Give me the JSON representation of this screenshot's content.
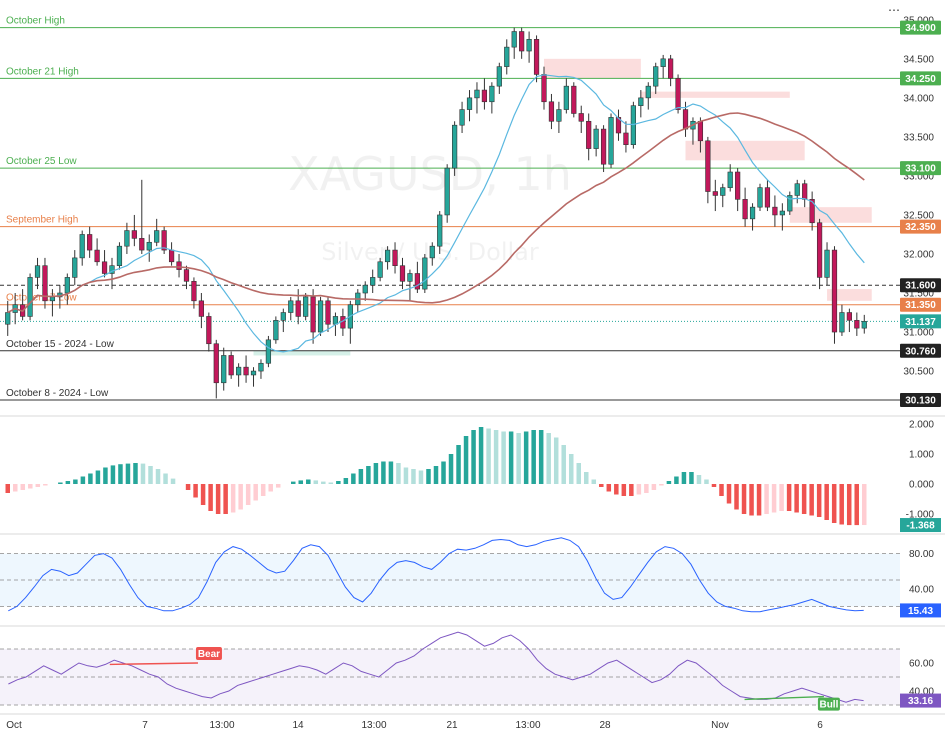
{
  "chart_data": [
    {
      "type": "candlestick",
      "symbol": "XAGUSD",
      "timeframe": "1h",
      "subtitle": "Silver / U.S. Dollar",
      "ylim": [
        29.95,
        35.1
      ],
      "y_ticks": [
        "35.000",
        "34.500",
        "34.000",
        "33.500",
        "33.000",
        "32.500",
        "32.000",
        "31.500",
        "31.000",
        "30.500"
      ],
      "x_ticks": [
        "Oct",
        "7",
        "13:00",
        "14",
        "13:00",
        "21",
        "13:00",
        "28",
        "Nov",
        "6"
      ],
      "current_price": "31.137",
      "levels": [
        {
          "label": "October High",
          "value": 34.9,
          "tag": "34.900",
          "color": "#4caf50",
          "style": "solid"
        },
        {
          "label": "October 21 High",
          "value": 34.25,
          "tag": "34.250",
          "color": "#4caf50",
          "style": "solid"
        },
        {
          "label": "October 25 Low",
          "value": 33.1,
          "tag": "33.100",
          "color": "#4caf50",
          "style": "solid"
        },
        {
          "label": "September High",
          "value": 32.35,
          "tag": "32.350",
          "color": "#e8804a",
          "style": "solid"
        },
        {
          "label": "",
          "value": 31.6,
          "tag": "31.600",
          "color": "#333333",
          "style": "dashed"
        },
        {
          "label": "October 17 Low",
          "value": 31.35,
          "tag": "31.350",
          "color": "#e8804a",
          "style": "solid"
        },
        {
          "label": "October 15 - 2024 - Low",
          "value": 30.76,
          "tag": "30.760",
          "color": "#333333",
          "style": "solid"
        },
        {
          "label": "October 8 - 2024 - Low",
          "value": 30.13,
          "tag": "30.130",
          "color": "#333333",
          "style": "solid"
        }
      ],
      "ohlc": [
        [
          31.1,
          31.4,
          30.95,
          31.25
        ],
        [
          31.25,
          31.5,
          31.1,
          31.35
        ],
        [
          31.35,
          31.55,
          31.15,
          31.2
        ],
        [
          31.2,
          31.75,
          31.15,
          31.7
        ],
        [
          31.7,
          31.95,
          31.55,
          31.85
        ],
        [
          31.85,
          31.95,
          31.3,
          31.4
        ],
        [
          31.4,
          31.55,
          31.2,
          31.45
        ],
        [
          31.45,
          31.6,
          31.3,
          31.5
        ],
        [
          31.5,
          31.75,
          31.35,
          31.7
        ],
        [
          31.7,
          32.05,
          31.6,
          31.95
        ],
        [
          31.95,
          32.3,
          31.85,
          32.25
        ],
        [
          32.25,
          32.35,
          31.95,
          32.05
        ],
        [
          32.05,
          32.2,
          31.85,
          31.9
        ],
        [
          31.9,
          32.05,
          31.7,
          31.75
        ],
        [
          31.75,
          31.95,
          31.55,
          31.85
        ],
        [
          31.85,
          32.15,
          31.8,
          32.1
        ],
        [
          32.1,
          32.4,
          32.0,
          32.3
        ],
        [
          32.3,
          32.5,
          32.1,
          32.2
        ],
        [
          32.2,
          32.95,
          32.0,
          32.05
        ],
        [
          32.05,
          32.25,
          31.9,
          32.15
        ],
        [
          32.15,
          32.45,
          32.1,
          32.3
        ],
        [
          32.3,
          32.35,
          32.0,
          32.05
        ],
        [
          32.05,
          32.15,
          31.85,
          31.9
        ],
        [
          31.9,
          32.0,
          31.7,
          31.8
        ],
        [
          31.8,
          31.85,
          31.55,
          31.65
        ],
        [
          31.65,
          31.7,
          31.3,
          31.4
        ],
        [
          31.4,
          31.5,
          31.05,
          31.2
        ],
        [
          31.2,
          31.25,
          30.75,
          30.85
        ],
        [
          30.85,
          30.9,
          30.15,
          30.35
        ],
        [
          30.35,
          30.8,
          30.25,
          30.7
        ],
        [
          30.7,
          30.75,
          30.4,
          30.45
        ],
        [
          30.45,
          30.6,
          30.3,
          30.55
        ],
        [
          30.55,
          30.7,
          30.35,
          30.45
        ],
        [
          30.45,
          30.55,
          30.3,
          30.5
        ],
        [
          30.5,
          30.65,
          30.4,
          30.6
        ],
        [
          30.6,
          30.95,
          30.55,
          30.9
        ],
        [
          30.9,
          31.2,
          30.85,
          31.15
        ],
        [
          31.15,
          31.3,
          31.0,
          31.25
        ],
        [
          31.25,
          31.45,
          31.15,
          31.4
        ],
        [
          31.4,
          31.55,
          31.1,
          31.2
        ],
        [
          31.2,
          31.5,
          31.15,
          31.45
        ],
        [
          31.45,
          31.55,
          30.85,
          31.0
        ],
        [
          31.0,
          31.45,
          30.95,
          31.4
        ],
        [
          31.4,
          31.45,
          31.0,
          31.1
        ],
        [
          31.1,
          31.25,
          30.95,
          31.2
        ],
        [
          31.2,
          31.3,
          30.95,
          31.05
        ],
        [
          31.05,
          31.4,
          30.85,
          31.35
        ],
        [
          31.35,
          31.55,
          31.25,
          31.5
        ],
        [
          31.5,
          31.65,
          31.4,
          31.6
        ],
        [
          31.6,
          31.8,
          31.5,
          31.7
        ],
        [
          31.7,
          31.95,
          31.65,
          31.9
        ],
        [
          31.9,
          32.1,
          31.8,
          32.05
        ],
        [
          32.05,
          32.15,
          31.75,
          31.85
        ],
        [
          31.85,
          31.95,
          31.55,
          31.65
        ],
        [
          31.65,
          31.8,
          31.4,
          31.75
        ],
        [
          31.75,
          31.9,
          31.5,
          31.55
        ],
        [
          31.55,
          32.0,
          31.5,
          31.95
        ],
        [
          31.95,
          32.15,
          31.85,
          32.1
        ],
        [
          32.1,
          32.55,
          32.0,
          32.5
        ],
        [
          32.5,
          33.15,
          32.4,
          33.1
        ],
        [
          33.1,
          33.7,
          33.0,
          33.65
        ],
        [
          33.65,
          33.95,
          33.55,
          33.85
        ],
        [
          33.85,
          34.1,
          33.7,
          34.0
        ],
        [
          34.0,
          34.2,
          33.8,
          34.1
        ],
        [
          34.1,
          34.25,
          33.85,
          33.95
        ],
        [
          33.95,
          34.2,
          33.8,
          34.15
        ],
        [
          34.15,
          34.45,
          34.05,
          34.4
        ],
        [
          34.4,
          34.75,
          34.3,
          34.65
        ],
        [
          34.65,
          34.9,
          34.5,
          34.85
        ],
        [
          34.85,
          34.9,
          34.5,
          34.6
        ],
        [
          34.6,
          34.85,
          34.45,
          34.75
        ],
        [
          34.75,
          34.8,
          34.2,
          34.3
        ],
        [
          34.3,
          34.4,
          33.85,
          33.95
        ],
        [
          33.95,
          34.05,
          33.6,
          33.7
        ],
        [
          33.7,
          33.95,
          33.55,
          33.85
        ],
        [
          33.85,
          34.25,
          33.8,
          34.15
        ],
        [
          34.15,
          34.2,
          33.75,
          33.8
        ],
        [
          33.8,
          33.9,
          33.55,
          33.7
        ],
        [
          33.7,
          33.8,
          33.2,
          33.35
        ],
        [
          33.35,
          33.65,
          33.25,
          33.6
        ],
        [
          33.6,
          33.65,
          33.05,
          33.15
        ],
        [
          33.15,
          33.8,
          33.1,
          33.75
        ],
        [
          33.75,
          33.85,
          33.45,
          33.55
        ],
        [
          33.55,
          33.7,
          33.3,
          33.4
        ],
        [
          33.4,
          33.95,
          33.35,
          33.9
        ],
        [
          33.9,
          34.1,
          33.75,
          34.0
        ],
        [
          34.0,
          34.2,
          33.85,
          34.15
        ],
        [
          34.15,
          34.45,
          34.05,
          34.4
        ],
        [
          34.4,
          34.55,
          34.25,
          34.5
        ],
        [
          34.5,
          34.55,
          34.15,
          34.25
        ],
        [
          34.25,
          34.3,
          33.8,
          33.85
        ],
        [
          33.85,
          33.95,
          33.5,
          33.6
        ],
        [
          33.6,
          33.75,
          33.4,
          33.7
        ],
        [
          33.7,
          33.75,
          33.3,
          33.45
        ],
        [
          33.45,
          33.5,
          32.65,
          32.8
        ],
        [
          32.8,
          32.95,
          32.55,
          32.75
        ],
        [
          32.75,
          32.9,
          32.6,
          32.85
        ],
        [
          32.85,
          33.15,
          32.8,
          33.05
        ],
        [
          33.05,
          33.1,
          32.55,
          32.7
        ],
        [
          32.7,
          32.85,
          32.35,
          32.45
        ],
        [
          32.45,
          32.65,
          32.3,
          32.6
        ],
        [
          32.6,
          32.9,
          32.55,
          32.85
        ],
        [
          32.85,
          32.95,
          32.55,
          32.6
        ],
        [
          32.6,
          32.75,
          32.35,
          32.5
        ],
        [
          32.5,
          32.65,
          32.3,
          32.55
        ],
        [
          32.55,
          32.8,
          32.5,
          32.75
        ],
        [
          32.75,
          32.95,
          32.65,
          32.9
        ],
        [
          32.9,
          32.95,
          32.6,
          32.7
        ],
        [
          32.7,
          32.8,
          32.3,
          32.4
        ],
        [
          32.4,
          32.45,
          31.55,
          31.7
        ],
        [
          31.7,
          32.15,
          31.6,
          32.05
        ],
        [
          32.05,
          32.1,
          30.85,
          31.0
        ],
        [
          31.0,
          31.35,
          30.95,
          31.25
        ],
        [
          31.25,
          31.3,
          31.0,
          31.15
        ],
        [
          31.15,
          31.25,
          30.95,
          31.05
        ],
        [
          31.05,
          31.22,
          30.98,
          31.137
        ]
      ],
      "sma_fast_color": "#5bb8e0",
      "sma_slow_color": "#b86a66",
      "bull_color": "#26a69a",
      "bear_color": "#ef5350",
      "supply_zone_color": "#f8c6c6",
      "demand_zone_color": "#b9e6d8"
    },
    {
      "type": "histogram",
      "name": "Momentum histogram",
      "y_ticks": [
        "2.000",
        "1.000",
        "0.000",
        "-1.000"
      ],
      "ylim": [
        -1.6,
        2.2
      ],
      "current": "-1.368",
      "values": [
        -0.3,
        -0.25,
        -0.2,
        -0.15,
        -0.1,
        -0.05,
        0.0,
        0.05,
        0.1,
        0.15,
        0.25,
        0.35,
        0.45,
        0.55,
        0.62,
        0.66,
        0.68,
        0.7,
        0.68,
        0.6,
        0.5,
        0.35,
        0.18,
        0.0,
        -0.2,
        -0.45,
        -0.7,
        -0.9,
        -1.0,
        -1.0,
        -0.95,
        -0.85,
        -0.7,
        -0.55,
        -0.4,
        -0.25,
        -0.12,
        0.0,
        0.08,
        0.12,
        0.15,
        0.12,
        0.08,
        0.05,
        0.1,
        0.2,
        0.35,
        0.5,
        0.6,
        0.7,
        0.75,
        0.75,
        0.7,
        0.55,
        0.5,
        0.45,
        0.5,
        0.6,
        0.75,
        1.0,
        1.3,
        1.6,
        1.8,
        1.9,
        1.85,
        1.8,
        1.75,
        1.75,
        1.7,
        1.75,
        1.8,
        1.8,
        1.7,
        1.55,
        1.3,
        1.0,
        0.7,
        0.4,
        0.15,
        -0.1,
        -0.25,
        -0.35,
        -0.4,
        -0.4,
        -0.35,
        -0.3,
        -0.2,
        -0.05,
        0.1,
        0.25,
        0.4,
        0.4,
        0.3,
        0.15,
        -0.1,
        -0.4,
        -0.65,
        -0.85,
        -1.0,
        -1.05,
        -1.05,
        -1.0,
        -0.95,
        -0.9,
        -0.9,
        -0.95,
        -1.0,
        -1.05,
        -1.1,
        -1.2,
        -1.3,
        -1.35,
        -1.37,
        -1.37,
        -1.368
      ]
    },
    {
      "type": "line",
      "name": "Stochastic",
      "y_ticks": [
        "80.00",
        "40.00"
      ],
      "ylim": [
        0,
        100
      ],
      "current": "15.43",
      "values": [
        15,
        20,
        30,
        42,
        55,
        62,
        60,
        55,
        58,
        68,
        78,
        80,
        75,
        62,
        45,
        30,
        20,
        18,
        15,
        15,
        18,
        22,
        30,
        48,
        70,
        82,
        88,
        85,
        78,
        70,
        62,
        58,
        60,
        72,
        86,
        90,
        88,
        78,
        60,
        42,
        30,
        25,
        35,
        50,
        62,
        70,
        72,
        70,
        65,
        62,
        70,
        80,
        85,
        84,
        86,
        90,
        95,
        96,
        95,
        90,
        88,
        90,
        94,
        96,
        98,
        95,
        88,
        72,
        52,
        35,
        28,
        30,
        42,
        56,
        70,
        82,
        88,
        86,
        80,
        68,
        50,
        35,
        25,
        20,
        18,
        15,
        14,
        14,
        16,
        18,
        20,
        22,
        25,
        28,
        24,
        20,
        18,
        16,
        15,
        15.43
      ]
    },
    {
      "type": "line",
      "name": "RSI",
      "y_ticks": [
        "60.00",
        "40.00"
      ],
      "ylim": [
        25,
        85
      ],
      "current": "33.16",
      "annotations": [
        {
          "text": "Bear",
          "color": "#ef5350"
        },
        {
          "text": "Bull",
          "color": "#4caf50"
        }
      ],
      "values": [
        45,
        48,
        50,
        54,
        58,
        55,
        52,
        56,
        60,
        58,
        57,
        59,
        62,
        60,
        58,
        55,
        52,
        50,
        45,
        42,
        40,
        38,
        36,
        35,
        38,
        40,
        44,
        46,
        48,
        50,
        52,
        54,
        56,
        58,
        57,
        55,
        52,
        56,
        60,
        58,
        54,
        52,
        50,
        55,
        60,
        62,
        65,
        70,
        74,
        78,
        80,
        82,
        80,
        76,
        72,
        74,
        78,
        80,
        76,
        70,
        62,
        56,
        52,
        50,
        48,
        50,
        52,
        56,
        60,
        62,
        58,
        54,
        50,
        46,
        48,
        52,
        58,
        62,
        60,
        55,
        50,
        44,
        40,
        36,
        35,
        34,
        34,
        35,
        38,
        40,
        42,
        40,
        38,
        36,
        34,
        32,
        34,
        33.16
      ]
    }
  ]
}
